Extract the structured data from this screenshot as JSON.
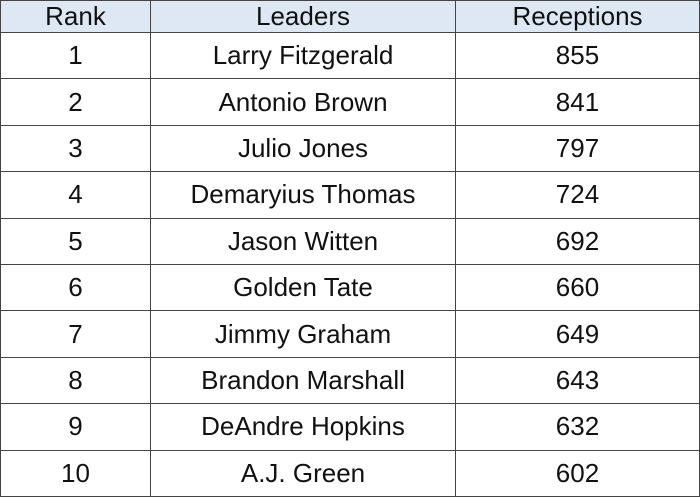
{
  "table": {
    "headers": [
      "Rank",
      "Leaders",
      "Receptions"
    ],
    "rows": [
      [
        1,
        "Larry Fitzgerald",
        855
      ],
      [
        2,
        "Antonio Brown",
        841
      ],
      [
        3,
        "Julio Jones",
        797
      ],
      [
        4,
        "Demaryius Thomas",
        724
      ],
      [
        5,
        "Jason Witten",
        692
      ],
      [
        6,
        "Golden Tate",
        660
      ],
      [
        7,
        "Jimmy Graham",
        649
      ],
      [
        8,
        "Brandon Marshall",
        643
      ],
      [
        9,
        "DeAndre Hopkins",
        632
      ],
      [
        10,
        "A.J. Green",
        602
      ]
    ]
  }
}
